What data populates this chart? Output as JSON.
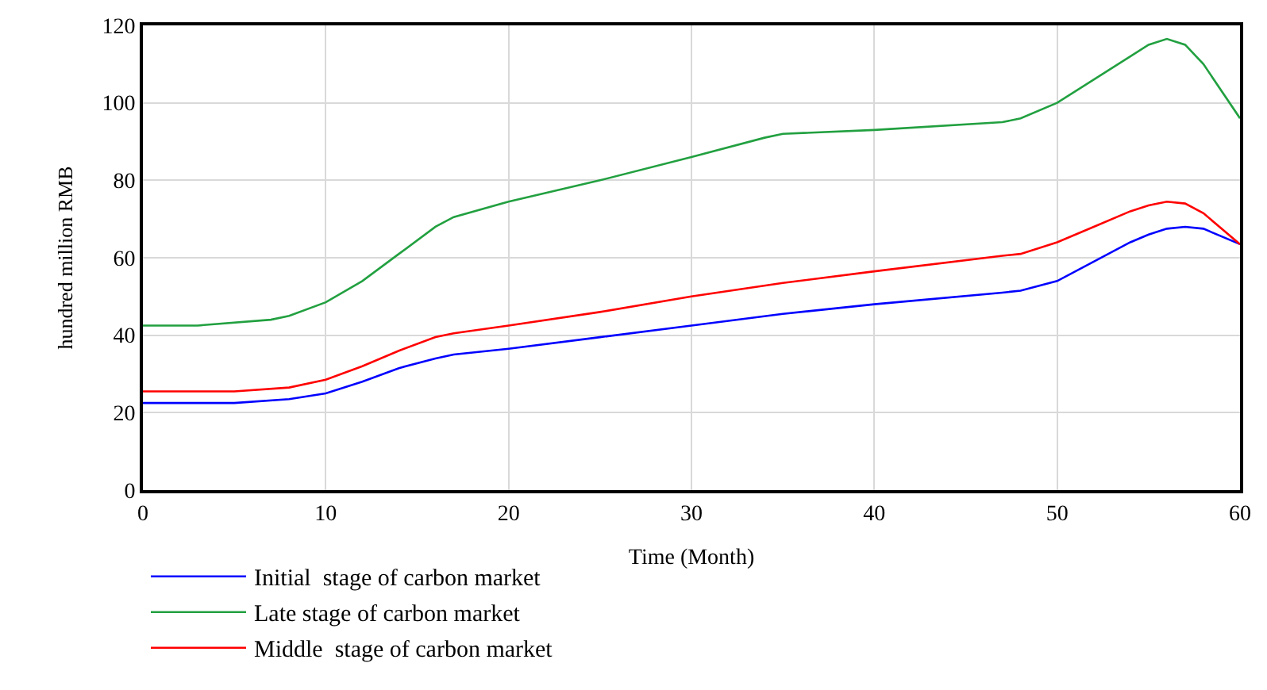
{
  "chart_data": {
    "type": "line",
    "xlabel": "Time (Month)",
    "ylabel": "hundred million RMB",
    "xlim": [
      0,
      60
    ],
    "xticks": [
      0,
      10,
      20,
      30,
      40,
      50,
      60
    ],
    "ylim": [
      0,
      120
    ],
    "yticks": [
      0,
      20,
      40,
      60,
      80,
      100,
      120
    ],
    "grid": true,
    "legend": "bottom",
    "marker": "none",
    "line_style": "solid",
    "series": [
      {
        "name": "Initial  stage of carbon market",
        "color": "#0000ff",
        "x": [
          0,
          5,
          8,
          10,
          12,
          14,
          16,
          17,
          20,
          25,
          30,
          35,
          40,
          47,
          48,
          50,
          52,
          54,
          55,
          56,
          57,
          58,
          60
        ],
        "values": [
          22.5,
          22.5,
          23.5,
          25,
          28,
          31.5,
          34,
          35,
          36.5,
          39.5,
          42.5,
          45.5,
          48,
          51,
          51.5,
          54,
          59,
          64,
          66,
          67.5,
          68,
          67.5,
          63.5
        ]
      },
      {
        "name": "Late stage of carbon market",
        "color": "#22a040",
        "x": [
          0,
          3,
          7,
          8,
          10,
          12,
          14,
          16,
          17,
          20,
          25,
          30,
          34,
          35,
          40,
          47,
          48,
          50,
          52,
          54,
          55,
          56,
          57,
          58,
          60
        ],
        "values": [
          42.5,
          42.5,
          44,
          45,
          48.5,
          54,
          61,
          68,
          70.5,
          74.5,
          80,
          86,
          91,
          92,
          93,
          95,
          96,
          100,
          106,
          112,
          115,
          116.5,
          115,
          110,
          96
        ]
      },
      {
        "name": "Middle  stage of carbon market",
        "color": "#ff0000",
        "x": [
          0,
          5,
          8,
          10,
          12,
          14,
          16,
          17,
          20,
          25,
          30,
          35,
          40,
          47,
          48,
          50,
          52,
          54,
          55,
          56,
          57,
          58,
          60
        ],
        "values": [
          25.5,
          25.5,
          26.5,
          28.5,
          32,
          36,
          39.5,
          40.5,
          42.5,
          46,
          50,
          53.5,
          56.5,
          60.5,
          61,
          64,
          68,
          72,
          73.5,
          74.5,
          74,
          71.5,
          63.5
        ]
      }
    ]
  }
}
